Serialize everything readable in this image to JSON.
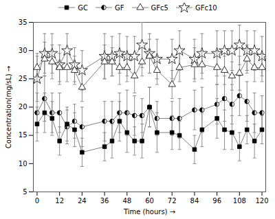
{
  "chart_data": {
    "type": "line",
    "xlabel": "Time (hours)",
    "ylabel": "Concentration(mg/sL)",
    "x": [
      0,
      4,
      8,
      12,
      16,
      20,
      24,
      36,
      40,
      44,
      48,
      52,
      56,
      60,
      64,
      72,
      76,
      84,
      88,
      96,
      100,
      104,
      108,
      112,
      116,
      120
    ],
    "xlim": [
      -2,
      122
    ],
    "xticks": [
      0,
      12,
      24,
      36,
      48,
      60,
      72,
      84,
      96,
      108,
      120
    ],
    "ylim": [
      5,
      35
    ],
    "yticks": [
      5,
      10,
      15,
      20,
      25,
      30,
      35
    ],
    "grid": false,
    "legend": "top",
    "series": [
      {
        "name": "GC",
        "color": "#808080",
        "marker": "square",
        "line_style": "solid",
        "values": [
          17.0,
          19.0,
          18.0,
          14.0,
          17.0,
          16.0,
          12.0,
          13.0,
          14.0,
          17.5,
          15.5,
          14.0,
          14.0,
          20.0,
          15.5,
          15.5,
          15.0,
          12.5,
          16.0,
          18.0,
          16.0,
          15.5,
          13.0,
          16.0,
          14.0,
          16.0
        ],
        "yerr": [
          3.0,
          3.5,
          3.0,
          2.5,
          3.0,
          3.0,
          2.5,
          2.5,
          3.0,
          3.5,
          3.5,
          2.5,
          3.0,
          3.5,
          3.5,
          3.0,
          2.5,
          2.5,
          3.0,
          3.5,
          3.5,
          3.0,
          2.5,
          2.5,
          3.0,
          2.5
        ]
      },
      {
        "name": "GF",
        "color": "#808080",
        "marker": "circle-half",
        "line_style": "solid",
        "values": [
          19.0,
          21.5,
          19.0,
          19.0,
          16.5,
          17.5,
          16.5,
          17.5,
          17.5,
          19.0,
          19.0,
          18.5,
          18.5,
          20.0,
          18.0,
          18.0,
          18.0,
          19.5,
          19.5,
          20.5,
          21.5,
          20.5,
          22.0,
          21.0,
          19.0,
          19.0
        ],
        "yerr": [
          3.5,
          4.0,
          3.5,
          3.5,
          3.0,
          3.0,
          3.5,
          3.5,
          3.5,
          3.5,
          4.0,
          3.5,
          3.0,
          3.5,
          3.0,
          3.0,
          3.5,
          3.5,
          4.0,
          3.5,
          4.0,
          3.5,
          3.5,
          3.5,
          3.5,
          3.0
        ]
      },
      {
        "name": "GFc5",
        "color": "#808080",
        "marker": "triangle-open",
        "line_style": "solid",
        "values": [
          27.0,
          28.5,
          28.0,
          27.0,
          27.0,
          26.5,
          23.5,
          28.0,
          28.0,
          27.0,
          27.0,
          25.5,
          28.0,
          29.0,
          26.5,
          24.0,
          27.0,
          27.5,
          27.5,
          27.0,
          26.5,
          25.5,
          26.0,
          28.5,
          27.0,
          27.0
        ],
        "yerr": [
          2.5,
          3.0,
          3.0,
          2.5,
          2.5,
          2.5,
          2.5,
          3.0,
          2.5,
          3.0,
          2.5,
          3.0,
          2.5,
          3.0,
          2.5,
          2.5,
          2.5,
          3.0,
          2.5,
          3.0,
          2.5,
          2.5,
          3.0,
          2.5,
          2.5,
          2.5
        ]
      },
      {
        "name": "GFc10",
        "color": "#808080",
        "marker": "star-open",
        "line_style": "solid",
        "values": [
          25.0,
          29.5,
          29.5,
          27.5,
          30.0,
          27.5,
          26.5,
          29.0,
          29.0,
          29.5,
          29.0,
          29.0,
          31.0,
          29.5,
          28.5,
          28.5,
          30.0,
          28.5,
          29.5,
          29.5,
          30.0,
          30.0,
          31.0,
          30.0,
          30.0,
          29.0
        ],
        "yerr": [
          4.0,
          3.5,
          3.5,
          3.5,
          3.0,
          3.0,
          3.5,
          4.0,
          3.5,
          3.5,
          3.5,
          3.5,
          4.0,
          3.5,
          3.5,
          3.5,
          3.5,
          3.5,
          3.5,
          4.0,
          3.5,
          3.5,
          3.5,
          3.5,
          3.5,
          3.5
        ]
      }
    ]
  }
}
